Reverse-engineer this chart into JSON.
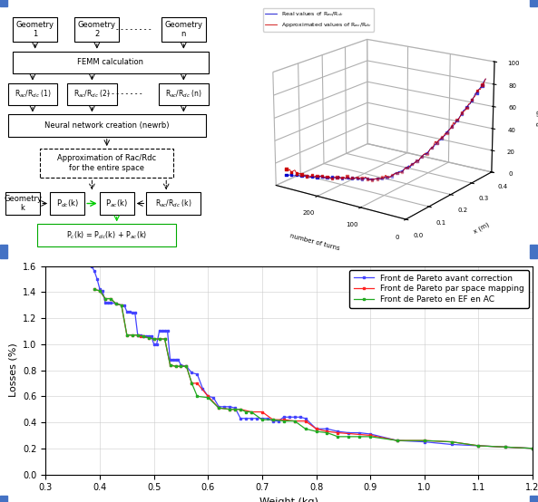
{
  "top_bg": "#f2f2f2",
  "bottom_bg": "#ffffff",
  "border_color": "#4472c4",
  "scatter3d": {
    "zlabel": "R$_{ac}$/R$_{dc}$",
    "xlabel_x": "x (m)",
    "xlabel_n": "number of turns",
    "legend_real": "Real values of R$_{ac}$/R$_{dc}$",
    "legend_approx": "Approximated values of R$_{ac}$/R$_{dc}$",
    "blue_color": "#0000cc",
    "red_color": "#cc0000"
  },
  "pareto": {
    "blue_x": [
      0.385,
      0.39,
      0.395,
      0.4,
      0.405,
      0.41,
      0.415,
      0.42,
      0.43,
      0.44,
      0.445,
      0.45,
      0.455,
      0.46,
      0.465,
      0.47,
      0.475,
      0.48,
      0.485,
      0.49,
      0.495,
      0.5,
      0.505,
      0.51,
      0.515,
      0.52,
      0.525,
      0.53,
      0.535,
      0.54,
      0.545,
      0.55,
      0.56,
      0.57,
      0.58,
      0.59,
      0.6,
      0.61,
      0.62,
      0.63,
      0.64,
      0.65,
      0.66,
      0.67,
      0.68,
      0.69,
      0.7,
      0.71,
      0.72,
      0.73,
      0.74,
      0.75,
      0.76,
      0.77,
      0.78,
      0.8,
      0.82,
      0.84,
      0.86,
      0.88,
      0.9,
      0.95,
      1.0,
      1.05,
      1.1,
      1.15,
      1.2
    ],
    "blue_y": [
      1.6,
      1.56,
      1.5,
      1.42,
      1.41,
      1.32,
      1.32,
      1.32,
      1.31,
      1.3,
      1.3,
      1.25,
      1.25,
      1.24,
      1.24,
      1.07,
      1.07,
      1.06,
      1.06,
      1.06,
      1.06,
      1.0,
      1.0,
      1.1,
      1.1,
      1.1,
      1.1,
      0.88,
      0.88,
      0.88,
      0.88,
      0.84,
      0.83,
      0.78,
      0.77,
      0.66,
      0.6,
      0.59,
      0.52,
      0.52,
      0.52,
      0.51,
      0.43,
      0.43,
      0.43,
      0.43,
      0.43,
      0.43,
      0.41,
      0.41,
      0.44,
      0.44,
      0.44,
      0.44,
      0.43,
      0.35,
      0.35,
      0.33,
      0.32,
      0.32,
      0.31,
      0.26,
      0.25,
      0.23,
      0.22,
      0.21,
      0.2
    ],
    "red_x": [
      0.39,
      0.4,
      0.41,
      0.42,
      0.43,
      0.44,
      0.45,
      0.46,
      0.47,
      0.475,
      0.48,
      0.49,
      0.5,
      0.51,
      0.52,
      0.53,
      0.54,
      0.55,
      0.56,
      0.57,
      0.58,
      0.6,
      0.62,
      0.64,
      0.65,
      0.66,
      0.68,
      0.7,
      0.72,
      0.74,
      0.76,
      0.78,
      0.8,
      0.82,
      0.84,
      0.9,
      0.95,
      1.0,
      1.05,
      1.1,
      1.15,
      1.2
    ],
    "red_y": [
      1.42,
      1.41,
      1.35,
      1.35,
      1.31,
      1.3,
      1.07,
      1.07,
      1.07,
      1.06,
      1.06,
      1.05,
      1.04,
      1.04,
      1.04,
      0.84,
      0.83,
      0.83,
      0.83,
      0.7,
      0.7,
      0.6,
      0.51,
      0.5,
      0.5,
      0.5,
      0.48,
      0.48,
      0.42,
      0.42,
      0.41,
      0.41,
      0.35,
      0.33,
      0.32,
      0.3,
      0.26,
      0.26,
      0.25,
      0.22,
      0.21,
      0.2
    ],
    "green_x": [
      0.39,
      0.4,
      0.41,
      0.42,
      0.43,
      0.44,
      0.45,
      0.46,
      0.47,
      0.48,
      0.49,
      0.5,
      0.51,
      0.52,
      0.53,
      0.54,
      0.55,
      0.56,
      0.57,
      0.58,
      0.6,
      0.62,
      0.64,
      0.65,
      0.66,
      0.67,
      0.68,
      0.7,
      0.72,
      0.74,
      0.76,
      0.78,
      0.8,
      0.82,
      0.84,
      0.86,
      0.88,
      0.9,
      0.95,
      1.0,
      1.05,
      1.1,
      1.15,
      1.2
    ],
    "green_y": [
      1.42,
      1.41,
      1.35,
      1.35,
      1.31,
      1.3,
      1.07,
      1.07,
      1.07,
      1.06,
      1.05,
      1.04,
      1.04,
      1.04,
      0.84,
      0.83,
      0.83,
      0.83,
      0.7,
      0.6,
      0.59,
      0.51,
      0.5,
      0.5,
      0.5,
      0.48,
      0.48,
      0.42,
      0.42,
      0.41,
      0.41,
      0.35,
      0.33,
      0.32,
      0.29,
      0.29,
      0.29,
      0.29,
      0.26,
      0.26,
      0.25,
      0.22,
      0.21,
      0.2
    ],
    "xlabel": "Weight (kg)",
    "ylabel": "Losses (%)",
    "xlim": [
      0.3,
      1.2
    ],
    "ylim": [
      0,
      1.6
    ],
    "xticks": [
      0.3,
      0.4,
      0.5,
      0.6,
      0.7,
      0.8,
      0.9,
      1.0,
      1.1,
      1.2
    ],
    "yticks": [
      0,
      0.2,
      0.4,
      0.6,
      0.8,
      1.0,
      1.2,
      1.4,
      1.6
    ],
    "legend1": "Front de Pareto avant correction",
    "legend2": "Front de Pareto par space mapping",
    "legend3": "Front de Pareto en EF en AC",
    "blue_color": "#4444ff",
    "red_color": "#ff2222",
    "green_color": "#22aa22"
  }
}
